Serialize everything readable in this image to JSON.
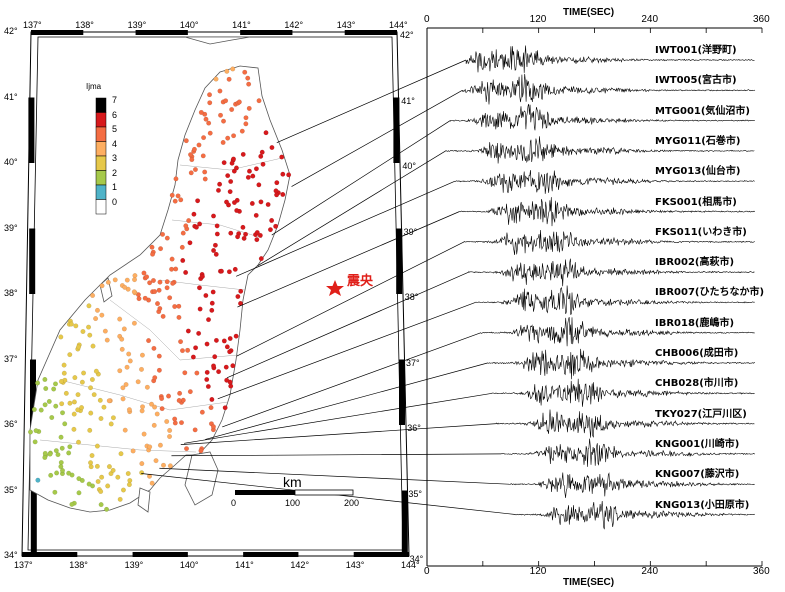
{
  "map": {
    "lon_labels": [
      "137°",
      "138°",
      "139°",
      "140°",
      "141°",
      "142°",
      "143°",
      "144°"
    ],
    "lat_labels": [
      "42°",
      "41°",
      "40°",
      "39°",
      "38°",
      "37°",
      "36°",
      "35°",
      "34°"
    ],
    "legend_title": "Ijma",
    "legend_levels": [
      "7",
      "6",
      "5",
      "4",
      "3",
      "2",
      "1",
      "0"
    ],
    "legend_colors": [
      "#000000",
      "#d7191c",
      "#f46d43",
      "#fdae61",
      "#e6c84a",
      "#a6c94a",
      "#4fb3c8",
      "#ffffff"
    ],
    "epicenter_label": "震央",
    "scale_unit": "km",
    "scale_ticks": [
      "0",
      "100",
      "200"
    ]
  },
  "seismo": {
    "axis_title": "TIME(SEC)",
    "time_ticks": [
      "0",
      "120",
      "240",
      "360"
    ],
    "stations": [
      {
        "code": "IWT001(洋野町)",
        "lon": 141.68,
        "lat": 40.31,
        "onset_sec": 42
      },
      {
        "code": "IWT005(宮古市)",
        "lon": 141.95,
        "lat": 39.64,
        "onset_sec": 38
      },
      {
        "code": "MTG001(気仙沼市)",
        "lon": 141.57,
        "lat": 38.9,
        "onset_sec": 25
      },
      {
        "code": "MYG011(石巻市)",
        "lon": 141.3,
        "lat": 38.43,
        "onset_sec": 20
      },
      {
        "code": "MYG013(仙台市)",
        "lon": 140.9,
        "lat": 38.27,
        "onset_sec": 30
      },
      {
        "code": "FKS001(相馬市)",
        "lon": 140.92,
        "lat": 37.8,
        "onset_sec": 35
      },
      {
        "code": "FKS011(いわき市)",
        "lon": 140.9,
        "lat": 37.05,
        "onset_sec": 40
      },
      {
        "code": "IBR002(高萩市)",
        "lon": 140.72,
        "lat": 36.72,
        "onset_sec": 45
      },
      {
        "code": "IBR007(ひたちなか市)",
        "lon": 140.55,
        "lat": 36.4,
        "onset_sec": 52
      },
      {
        "code": "IBR018(鹿嶋市)",
        "lon": 140.63,
        "lat": 35.97,
        "onset_sec": 58
      },
      {
        "code": "CHB006(成田市)",
        "lon": 140.32,
        "lat": 35.78,
        "onset_sec": 65
      },
      {
        "code": "CHB028(市川市)",
        "lon": 139.93,
        "lat": 35.72,
        "onset_sec": 70
      },
      {
        "code": "TKY027(江戸川区)",
        "lon": 139.87,
        "lat": 35.7,
        "onset_sec": 75
      },
      {
        "code": "KNG001(川崎市)",
        "lon": 139.7,
        "lat": 35.53,
        "onset_sec": 80
      },
      {
        "code": "KNG007(藤沢市)",
        "lon": 139.48,
        "lat": 35.34,
        "onset_sec": 88
      },
      {
        "code": "KNG013(小田原市)",
        "lon": 139.15,
        "lat": 35.26,
        "onset_sec": 95
      }
    ]
  }
}
